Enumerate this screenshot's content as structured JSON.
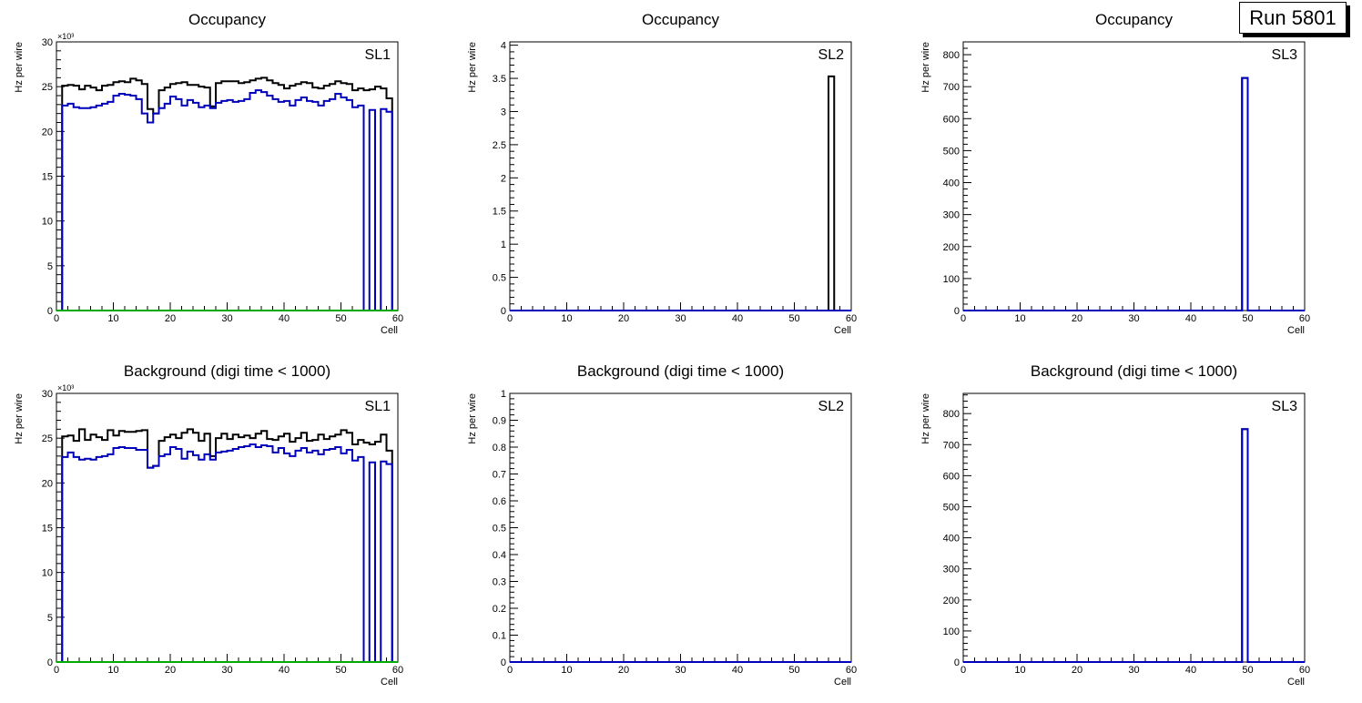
{
  "run_label": "Run 5801",
  "chart_data": [
    {
      "type": "histogram",
      "title": "Occupancy",
      "label": "SL1",
      "xlabel": "Cell",
      "ylabel": "Hz per wire",
      "xlim": [
        0,
        60
      ],
      "ylim": [
        0,
        30
      ],
      "y_exponent": "×10³",
      "xticks": [
        0,
        10,
        20,
        30,
        40,
        50,
        60
      ],
      "yticks": [
        0,
        5,
        10,
        15,
        20,
        25,
        30
      ],
      "bin_width": 1,
      "series": [
        {
          "color": "#000000",
          "values": [
            0,
            25.1,
            25.2,
            25.1,
            24.7,
            25.1,
            24.9,
            24.6,
            25.1,
            25.2,
            25.5,
            25.6,
            25.5,
            25.9,
            25.7,
            25.3,
            22.5,
            22.0,
            24.6,
            24.9,
            25.3,
            25.4,
            25.5,
            25.2,
            25.2,
            25.0,
            24.9,
            22.8,
            25.4,
            25.6,
            25.6,
            25.6,
            25.4,
            25.5,
            25.7,
            25.9,
            26.0,
            25.7,
            25.4,
            25.2,
            24.8,
            25.1,
            25.3,
            25.5,
            25.4,
            24.9,
            24.8,
            25.1,
            25.3,
            25.6,
            25.4,
            25.3,
            24.6,
            24.8,
            24.6,
            24.7,
            25.0,
            24.8,
            23.7,
            0
          ]
        },
        {
          "color": "#0000bb",
          "values": [
            0,
            22.9,
            23.1,
            22.7,
            22.6,
            22.6,
            22.7,
            22.9,
            23.1,
            23.3,
            24.0,
            24.2,
            24.1,
            24.0,
            23.6,
            22.0,
            21.0,
            22.0,
            22.6,
            23.1,
            23.9,
            23.6,
            22.9,
            23.5,
            23.2,
            22.7,
            22.9,
            22.6,
            23.2,
            23.4,
            23.5,
            23.3,
            23.4,
            23.6,
            24.3,
            24.6,
            24.4,
            24.0,
            23.6,
            23.3,
            23.4,
            22.9,
            23.5,
            23.8,
            23.4,
            23.3,
            22.9,
            23.4,
            23.6,
            24.2,
            23.8,
            23.5,
            22.7,
            22.9,
            0,
            22.4,
            0,
            22.5,
            22.2,
            0
          ]
        },
        {
          "color": "#00aa00",
          "values": [
            0,
            0,
            0,
            0,
            0,
            0,
            0,
            0,
            0,
            0,
            0,
            0,
            0,
            0,
            0,
            0,
            0,
            0,
            0,
            0,
            0,
            0,
            0,
            0,
            0,
            0,
            0,
            0,
            0,
            0,
            0,
            0,
            0,
            0,
            0,
            0,
            0,
            0,
            0,
            0,
            0,
            0,
            0,
            0,
            0,
            0,
            0,
            0,
            0,
            0,
            0,
            0,
            0,
            0,
            0,
            0,
            0,
            0,
            0,
            0
          ]
        }
      ]
    },
    {
      "type": "histogram",
      "title": "Occupancy",
      "label": "SL2",
      "xlabel": "Cell",
      "ylabel": "Hz per wire",
      "xlim": [
        0,
        60
      ],
      "ylim": [
        0,
        4.05
      ],
      "xticks": [
        0,
        10,
        20,
        30,
        40,
        50,
        60
      ],
      "yticks": [
        0,
        0.5,
        1,
        1.5,
        2,
        2.5,
        3,
        3.5,
        4
      ],
      "bin_width": 1,
      "series": [
        {
          "color": "#000000",
          "bins": [
            [
              56,
              3.53
            ]
          ]
        },
        {
          "color": "#0000bb",
          "bins": []
        }
      ]
    },
    {
      "type": "histogram",
      "title": "Occupancy",
      "label": "SL3",
      "xlabel": "Cell",
      "ylabel": "Hz per wire",
      "xlim": [
        0,
        60
      ],
      "ylim": [
        0,
        840
      ],
      "xticks": [
        0,
        10,
        20,
        30,
        40,
        50,
        60
      ],
      "yticks": [
        0,
        100,
        200,
        300,
        400,
        500,
        600,
        700,
        800
      ],
      "bin_width": 1,
      "series": [
        {
          "color": "#000000",
          "bins": [
            [
              49,
              727
            ]
          ]
        },
        {
          "color": "#0000bb",
          "bins": [
            [
              49,
              727
            ]
          ]
        }
      ]
    },
    {
      "type": "histogram",
      "title": "Background (digi time < 1000)",
      "label": "SL1",
      "xlabel": "Cell",
      "ylabel": "Hz per wire",
      "xlim": [
        0,
        60
      ],
      "ylim": [
        0,
        30
      ],
      "y_exponent": "×10³",
      "xticks": [
        0,
        10,
        20,
        30,
        40,
        50,
        60
      ],
      "yticks": [
        0,
        5,
        10,
        15,
        20,
        25,
        30
      ],
      "bin_width": 1,
      "series": [
        {
          "color": "#000000",
          "values": [
            0,
            25.2,
            25.3,
            24.7,
            26.0,
            24.8,
            25.4,
            25.1,
            24.8,
            25.9,
            25.3,
            25.8,
            25.7,
            25.7,
            25.8,
            25.9,
            21.7,
            21.9,
            24.7,
            25.1,
            25.4,
            25.0,
            25.6,
            26.0,
            25.6,
            24.7,
            25.5,
            23.0,
            25.0,
            25.5,
            24.9,
            25.4,
            25.1,
            25.3,
            25.0,
            25.5,
            25.8,
            24.9,
            24.8,
            25.2,
            25.5,
            24.6,
            25.0,
            25.6,
            24.7,
            24.8,
            25.4,
            24.9,
            25.2,
            25.4,
            25.9,
            25.6,
            24.3,
            24.8,
            24.5,
            24.3,
            24.6,
            25.4,
            23.6,
            0
          ]
        },
        {
          "color": "#0000bb",
          "values": [
            0,
            22.9,
            23.4,
            22.9,
            22.6,
            22.7,
            22.6,
            22.9,
            23.0,
            23.2,
            23.9,
            24.0,
            23.9,
            23.9,
            23.7,
            23.7,
            21.7,
            21.9,
            23.0,
            23.2,
            24.0,
            23.8,
            22.7,
            23.5,
            23.1,
            22.6,
            23.2,
            22.6,
            23.4,
            23.5,
            23.6,
            23.8,
            24.0,
            24.1,
            24.3,
            24.0,
            24.2,
            24.1,
            23.4,
            23.9,
            23.3,
            23.0,
            23.6,
            23.9,
            23.4,
            23.6,
            23.2,
            23.7,
            23.8,
            24.0,
            23.3,
            23.7,
            22.5,
            22.9,
            0,
            22.3,
            0,
            22.4,
            22.1,
            0
          ]
        },
        {
          "color": "#00aa00",
          "values": [
            0,
            0,
            0,
            0,
            0,
            0,
            0,
            0,
            0,
            0,
            0,
            0,
            0,
            0,
            0,
            0,
            0,
            0,
            0,
            0,
            0,
            0,
            0,
            0,
            0,
            0,
            0,
            0,
            0,
            0,
            0,
            0,
            0,
            0,
            0,
            0,
            0,
            0,
            0,
            0,
            0,
            0,
            0,
            0,
            0,
            0,
            0,
            0,
            0,
            0,
            0,
            0,
            0,
            0,
            0,
            0,
            0,
            0,
            0,
            0
          ]
        }
      ]
    },
    {
      "type": "histogram",
      "title": "Background (digi time < 1000)",
      "label": "SL2",
      "xlabel": "Cell",
      "ylabel": "Hz per wire",
      "xlim": [
        0,
        60
      ],
      "ylim": [
        0,
        1
      ],
      "xticks": [
        0,
        10,
        20,
        30,
        40,
        50,
        60
      ],
      "yticks": [
        0,
        0.1,
        0.2,
        0.3,
        0.4,
        0.5,
        0.6,
        0.7,
        0.8,
        0.9,
        1
      ],
      "bin_width": 1,
      "series": [
        {
          "color": "#0000bb",
          "bins": []
        }
      ]
    },
    {
      "type": "histogram",
      "title": "Background (digi time < 1000)",
      "label": "SL3",
      "xlabel": "Cell",
      "ylabel": "Hz per wire",
      "xlim": [
        0,
        60
      ],
      "ylim": [
        0,
        865
      ],
      "xticks": [
        0,
        10,
        20,
        30,
        40,
        50,
        60
      ],
      "yticks": [
        0,
        100,
        200,
        300,
        400,
        500,
        600,
        700,
        800
      ],
      "bin_width": 1,
      "series": [
        {
          "color": "#000000",
          "bins": [
            [
              49,
              750
            ]
          ]
        },
        {
          "color": "#0000bb",
          "bins": [
            [
              49,
              750
            ]
          ]
        }
      ]
    }
  ]
}
